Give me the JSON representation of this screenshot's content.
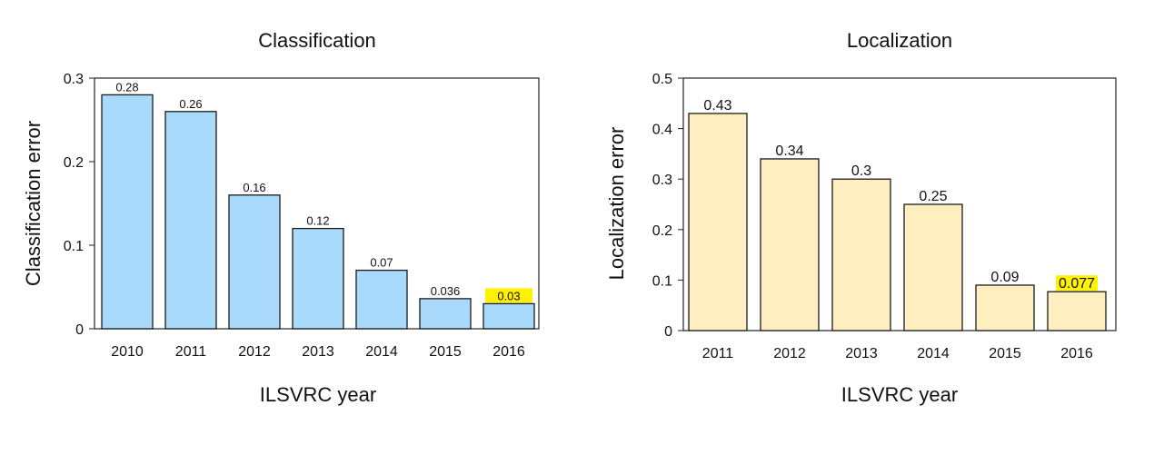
{
  "chart_data": [
    {
      "type": "bar",
      "title": "Classification",
      "xlabel": "ILSVRC year",
      "ylabel": "Classification error",
      "categories": [
        "2010",
        "2011",
        "2012",
        "2013",
        "2014",
        "2015",
        "2016"
      ],
      "values": [
        0.28,
        0.26,
        0.16,
        0.12,
        0.07,
        0.036,
        0.03
      ],
      "value_labels": [
        "0.28",
        "0.26",
        "0.16",
        "0.12",
        "0.07",
        "0.036",
        "0.03"
      ],
      "ylim": [
        0,
        0.3
      ],
      "yticks": [
        0,
        0.1,
        0.2,
        0.3
      ],
      "ytick_labels": [
        "0",
        "0.1",
        "0.2",
        "0.3"
      ],
      "highlight_index": 6,
      "bar_color": "#a9dafc",
      "highlight_color": "#fff200",
      "grid": false
    },
    {
      "type": "bar",
      "title": "Localization",
      "xlabel": "ILSVRC year",
      "ylabel": "Localization error",
      "categories": [
        "2011",
        "2012",
        "2013",
        "2014",
        "2015",
        "2016"
      ],
      "values": [
        0.43,
        0.34,
        0.3,
        0.25,
        0.09,
        0.077
      ],
      "value_labels": [
        "0.43",
        "0.34",
        "0.3",
        "0.25",
        "0.09",
        "0.077"
      ],
      "ylim": [
        0,
        0.5
      ],
      "yticks": [
        0,
        0.1,
        0.2,
        0.3,
        0.4,
        0.5
      ],
      "ytick_labels": [
        "0",
        "0.1",
        "0.2",
        "0.3",
        "0.4",
        "0.5"
      ],
      "highlight_index": 5,
      "bar_color": "#ffeebf",
      "highlight_color": "#fff200",
      "grid": false
    }
  ]
}
